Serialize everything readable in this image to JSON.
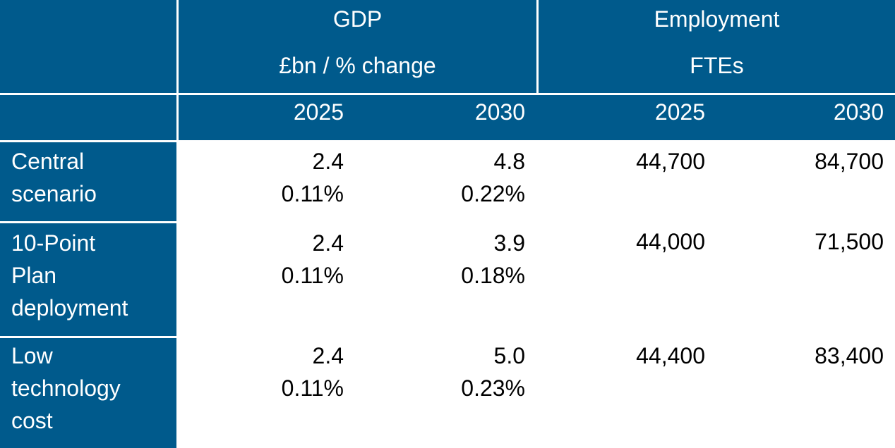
{
  "header": {
    "gdp_title": "GDP",
    "gdp_unit": "£bn / % change",
    "employment_title": "Employment",
    "employment_unit": "FTEs",
    "years": [
      "2025",
      "2030",
      "2025",
      "2030"
    ]
  },
  "rows": [
    {
      "label_lines": [
        "Central",
        "scenario"
      ],
      "gdp_2025": {
        "value": "2.4",
        "change": "0.11%"
      },
      "gdp_2030": {
        "value": "4.8",
        "change": "0.22%"
      },
      "emp_2025": "44,700",
      "emp_2030": "84,700"
    },
    {
      "label_lines": [
        "10-Point",
        "Plan",
        "deployment"
      ],
      "gdp_2025": {
        "value": "2.4",
        "change": "0.11%"
      },
      "gdp_2030": {
        "value": "3.9",
        "change": "0.18%"
      },
      "emp_2025": "44,000",
      "emp_2030": "71,500"
    },
    {
      "label_lines": [
        "Low",
        "technology",
        "cost"
      ],
      "gdp_2025": {
        "value": "2.4",
        "change": "0.11%"
      },
      "gdp_2030": {
        "value": "5.0",
        "change": "0.23%"
      },
      "emp_2025": "44,400",
      "emp_2030": "83,400"
    }
  ],
  "colors": {
    "header_bg": "#005a8c",
    "header_text": "#ffffff"
  }
}
